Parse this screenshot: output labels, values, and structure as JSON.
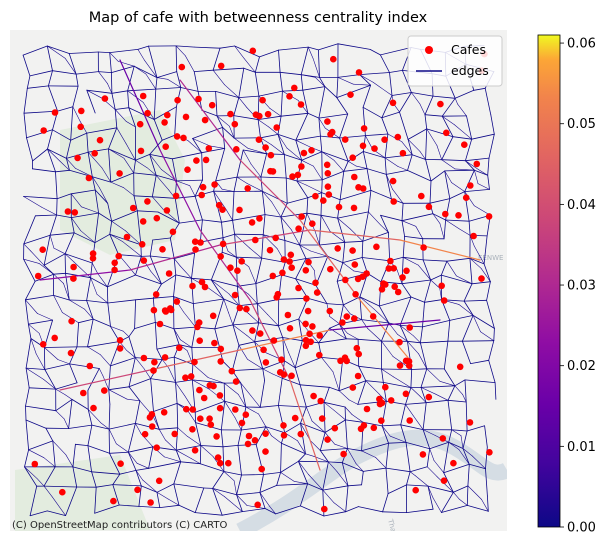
{
  "title": "Map of cafe with betweenness centrality index",
  "attribution": "(C) OpenStreetMap contributors (C) CARTO",
  "basemap_labels": [
    "EENWE",
    "Thames"
  ],
  "legend": {
    "position": "top-right",
    "cafes_label": "Cafes",
    "edges_label": "edges",
    "cafes_color": "#ff0000",
    "edges_color": "#0d0887"
  },
  "colorbar": {
    "colormap": "plasma",
    "range": [
      0.0,
      0.061
    ],
    "ticks": [
      "0.00",
      "0.01",
      "0.02",
      "0.03",
      "0.04",
      "0.05",
      "0.06"
    ]
  },
  "chart_data": {
    "type": "scatter",
    "title": "Map of cafe with betweenness centrality index",
    "series": [
      {
        "name": "Cafes",
        "kind": "points",
        "color": "#ff0000"
      },
      {
        "name": "edges",
        "kind": "network",
        "color_by": "betweenness centrality",
        "colormap": "plasma"
      }
    ],
    "color_scale": {
      "min": 0.0,
      "max": 0.061,
      "ticks": [
        0.0,
        0.01,
        0.02,
        0.03,
        0.04,
        0.05,
        0.06
      ]
    },
    "grid": false,
    "axes_visible": false
  }
}
